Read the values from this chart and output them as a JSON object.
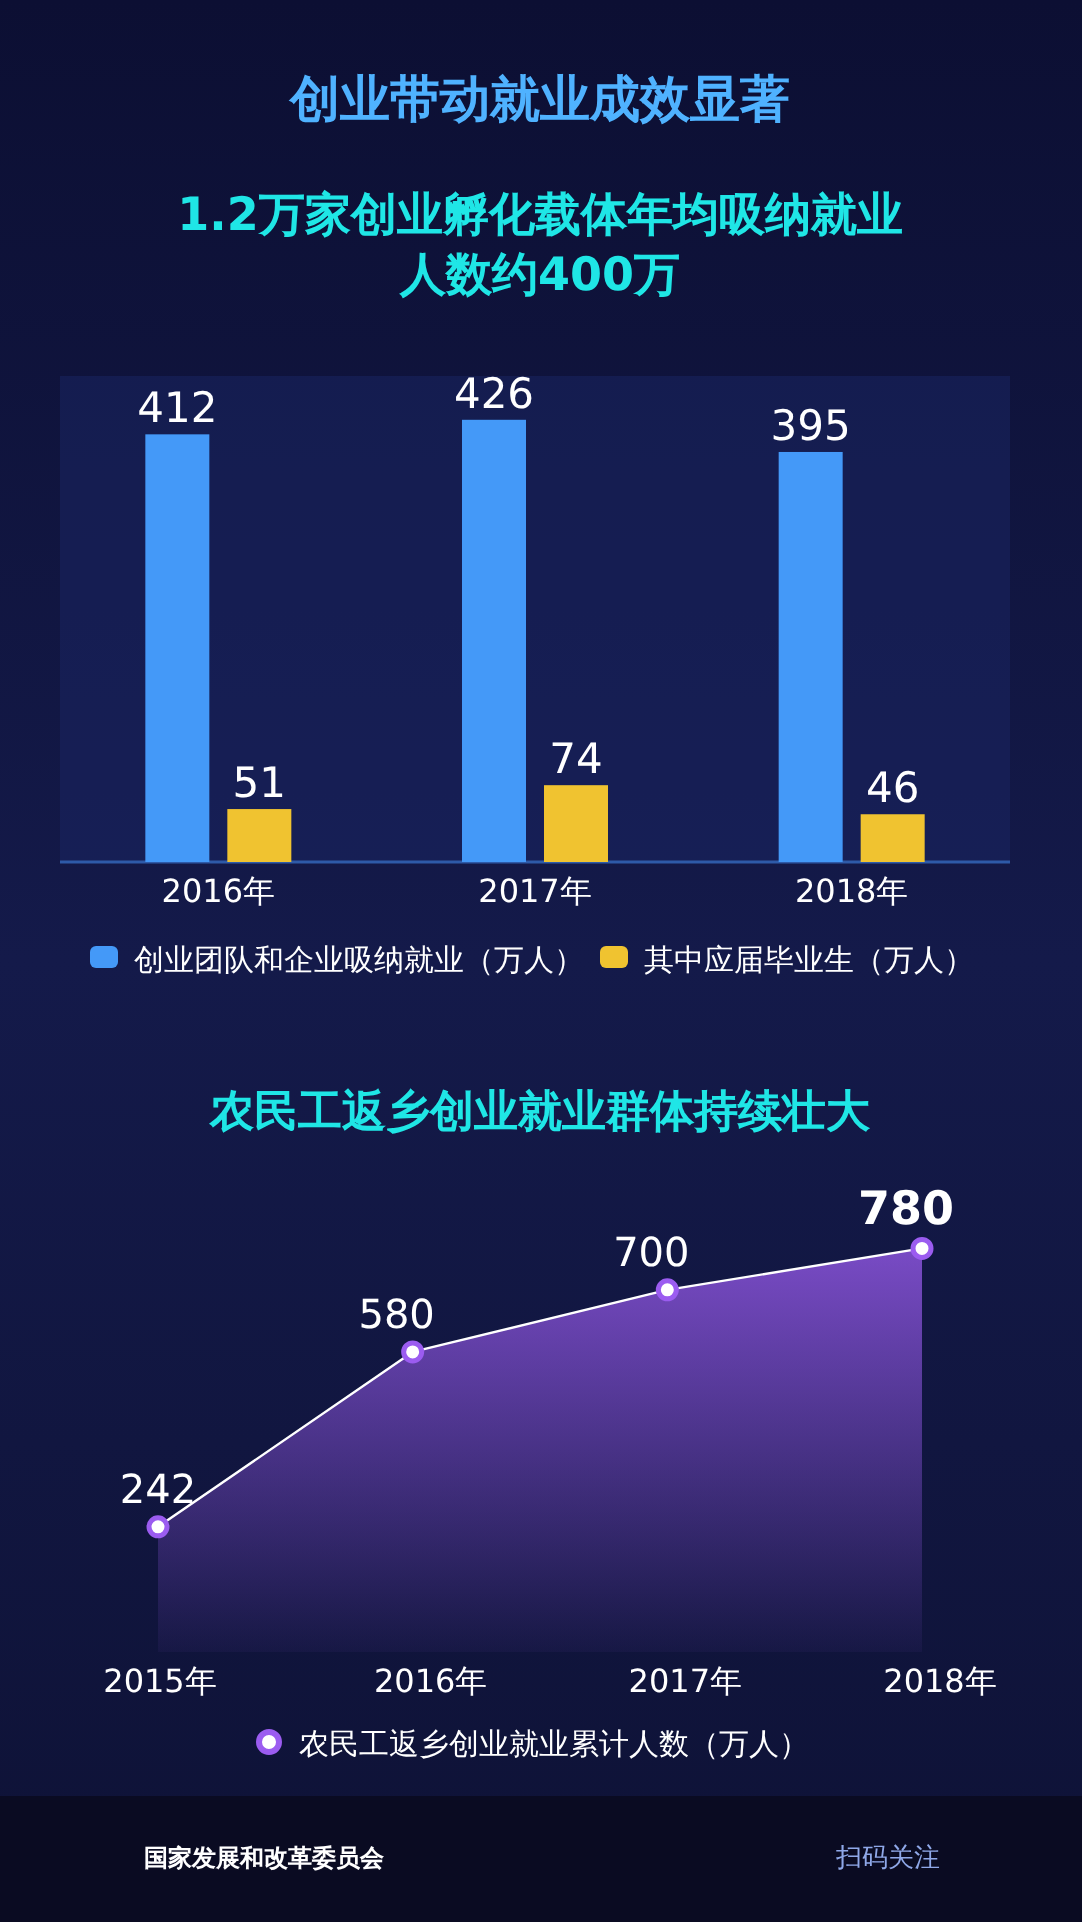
{
  "chart_data": [
    {
      "type": "bar",
      "title": "创业带动就业成效显著",
      "subtitle": "1.2万家创业孵化载体年均吸纳就业人数约400万",
      "categories": [
        "2016年",
        "2017年",
        "2018年"
      ],
      "series": [
        {
          "name": "创业团队和企业吸纳就业（万人）",
          "color": "#4499f8",
          "values": [
            412,
            426,
            395
          ]
        },
        {
          "name": "其中应届毕业生（万人）",
          "color": "#f0c330",
          "values": [
            51,
            74,
            46
          ]
        }
      ],
      "data_labels": true,
      "legend": "bottom"
    },
    {
      "type": "area",
      "title": "农民工返乡创业就业群体持续壮大",
      "categories": [
        "2015年",
        "2016年",
        "2017年",
        "2018年"
      ],
      "series": [
        {
          "name": "农民工返乡创业就业累计人数（万人）",
          "color": "#9b5cf0",
          "values": [
            242,
            580,
            700,
            780
          ]
        }
      ],
      "data_labels": true,
      "legend": "bottom",
      "marker": "circle",
      "annotations": [
        "国家发展和改革委员会",
        "扫码关注"
      ]
    }
  ]
}
